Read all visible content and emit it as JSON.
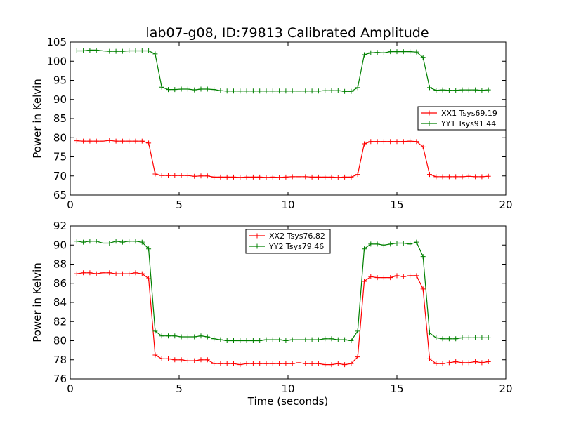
{
  "figure": {
    "title": "lab07-g08, ID:79813 Calibrated Amplitude"
  },
  "chart_data": [
    {
      "type": "line",
      "title": "lab07-g08, ID:79813 Calibrated Amplitude",
      "xlabel": "",
      "ylabel": "Power in Kelvin",
      "xlim": [
        0,
        20
      ],
      "ylim": [
        65,
        105
      ],
      "xticks": [
        0,
        5,
        10,
        15,
        20
      ],
      "yticks": [
        65,
        70,
        75,
        80,
        85,
        90,
        95,
        100,
        105
      ],
      "grid": false,
      "legend_position": "right",
      "x": [
        0.3,
        0.6,
        0.9,
        1.2,
        1.5,
        1.8,
        2.1,
        2.4,
        2.7,
        3.0,
        3.3,
        3.6,
        3.9,
        4.2,
        4.5,
        4.8,
        5.1,
        5.4,
        5.7,
        6.0,
        6.3,
        6.6,
        6.9,
        7.2,
        7.5,
        7.8,
        8.1,
        8.4,
        8.7,
        9.0,
        9.3,
        9.6,
        9.9,
        10.2,
        10.5,
        10.8,
        11.1,
        11.4,
        11.7,
        12.0,
        12.3,
        12.6,
        12.9,
        13.2,
        13.5,
        13.8,
        14.1,
        14.4,
        14.7,
        15.0,
        15.3,
        15.6,
        15.9,
        16.2,
        16.5,
        16.8,
        17.1,
        17.4,
        17.7,
        18.0,
        18.3,
        18.6,
        18.9,
        19.2
      ],
      "series": [
        {
          "name": "XX1 Tsys69.19",
          "color": "#ff0000",
          "values": [
            79.2,
            79.1,
            79.1,
            79.1,
            79.1,
            79.3,
            79.1,
            79.1,
            79.1,
            79.1,
            79.1,
            78.6,
            70.5,
            70.1,
            70.1,
            70.1,
            70.1,
            70.1,
            69.9,
            70.0,
            70.0,
            69.7,
            69.7,
            69.7,
            69.7,
            69.6,
            69.7,
            69.7,
            69.7,
            69.6,
            69.7,
            69.6,
            69.7,
            69.8,
            69.8,
            69.8,
            69.7,
            69.7,
            69.7,
            69.7,
            69.6,
            69.7,
            69.7,
            70.4,
            78.4,
            79.0,
            79.0,
            79.0,
            79.0,
            79.0,
            79.0,
            79.1,
            79.0,
            77.6,
            70.4,
            69.8,
            69.8,
            69.8,
            69.8,
            69.8,
            69.9,
            69.8,
            69.8,
            69.9
          ]
        },
        {
          "name": "YY1 Tsys91.44",
          "color": "#008000",
          "values": [
            102.7,
            102.7,
            102.9,
            102.9,
            102.7,
            102.6,
            102.6,
            102.6,
            102.7,
            102.7,
            102.7,
            102.7,
            101.9,
            93.2,
            92.6,
            92.6,
            92.7,
            92.7,
            92.5,
            92.7,
            92.7,
            92.6,
            92.3,
            92.2,
            92.2,
            92.2,
            92.2,
            92.2,
            92.2,
            92.2,
            92.2,
            92.2,
            92.2,
            92.2,
            92.2,
            92.2,
            92.2,
            92.2,
            92.3,
            92.3,
            92.3,
            92.1,
            92.1,
            93.1,
            101.7,
            102.2,
            102.3,
            102.2,
            102.5,
            102.5,
            102.5,
            102.5,
            102.4,
            101.0,
            93.1,
            92.4,
            92.5,
            92.4,
            92.4,
            92.5,
            92.5,
            92.5,
            92.4,
            92.5
          ]
        }
      ]
    },
    {
      "type": "line",
      "title": "",
      "xlabel": "Time (seconds)",
      "ylabel": "Power in Kelvin",
      "xlim": [
        0,
        20
      ],
      "ylim": [
        76,
        92
      ],
      "xticks": [
        0,
        5,
        10,
        15,
        20
      ],
      "yticks": [
        76,
        78,
        80,
        82,
        84,
        86,
        88,
        90,
        92
      ],
      "grid": false,
      "legend_position": "top-center",
      "x": [
        0.3,
        0.6,
        0.9,
        1.2,
        1.5,
        1.8,
        2.1,
        2.4,
        2.7,
        3.0,
        3.3,
        3.6,
        3.9,
        4.2,
        4.5,
        4.8,
        5.1,
        5.4,
        5.7,
        6.0,
        6.3,
        6.6,
        6.9,
        7.2,
        7.5,
        7.8,
        8.1,
        8.4,
        8.7,
        9.0,
        9.3,
        9.6,
        9.9,
        10.2,
        10.5,
        10.8,
        11.1,
        11.4,
        11.7,
        12.0,
        12.3,
        12.6,
        12.9,
        13.2,
        13.5,
        13.8,
        14.1,
        14.4,
        14.7,
        15.0,
        15.3,
        15.6,
        15.9,
        16.2,
        16.5,
        16.8,
        17.1,
        17.4,
        17.7,
        18.0,
        18.3,
        18.6,
        18.9,
        19.2
      ],
      "series": [
        {
          "name": "XX2 Tsys76.82",
          "color": "#ff0000",
          "values": [
            87.0,
            87.1,
            87.1,
            87.0,
            87.1,
            87.1,
            87.0,
            87.0,
            87.0,
            87.1,
            87.0,
            86.5,
            78.5,
            78.1,
            78.1,
            78.0,
            78.0,
            77.9,
            77.9,
            78.0,
            78.0,
            77.6,
            77.6,
            77.6,
            77.6,
            77.5,
            77.6,
            77.6,
            77.6,
            77.6,
            77.6,
            77.6,
            77.6,
            77.6,
            77.7,
            77.6,
            77.6,
            77.6,
            77.5,
            77.5,
            77.6,
            77.5,
            77.6,
            78.3,
            86.2,
            86.7,
            86.6,
            86.6,
            86.6,
            86.8,
            86.7,
            86.8,
            86.8,
            85.4,
            78.1,
            77.6,
            77.6,
            77.7,
            77.8,
            77.7,
            77.7,
            77.8,
            77.7,
            77.8
          ]
        },
        {
          "name": "YY2 Tsys79.46",
          "color": "#008000",
          "values": [
            90.4,
            90.3,
            90.4,
            90.4,
            90.2,
            90.2,
            90.4,
            90.3,
            90.4,
            90.4,
            90.3,
            89.6,
            81.0,
            80.5,
            80.5,
            80.5,
            80.4,
            80.4,
            80.4,
            80.5,
            80.4,
            80.2,
            80.1,
            80.0,
            80.0,
            80.0,
            80.0,
            80.0,
            80.0,
            80.1,
            80.1,
            80.1,
            80.0,
            80.1,
            80.1,
            80.1,
            80.1,
            80.1,
            80.2,
            80.2,
            80.1,
            80.1,
            80.0,
            81.0,
            89.6,
            90.1,
            90.1,
            90.0,
            90.1,
            90.2,
            90.2,
            90.1,
            90.3,
            88.8,
            80.8,
            80.3,
            80.2,
            80.2,
            80.2,
            80.3,
            80.3,
            80.3,
            80.3,
            80.3
          ]
        }
      ]
    }
  ]
}
